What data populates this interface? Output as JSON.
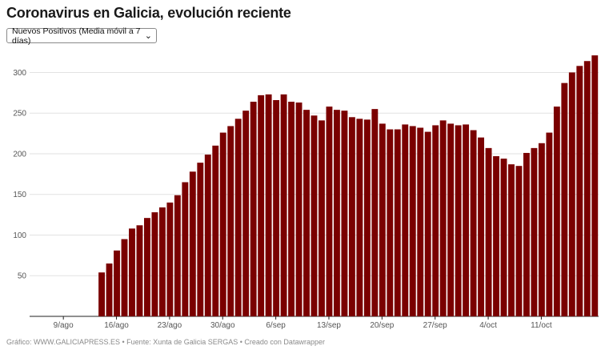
{
  "page": {
    "title": "Coronavirus en Galicia, evolución reciente",
    "selector": {
      "selected": "Nuevos Positivos (Media móvil a 7 días)"
    },
    "footer": "Gráfico: WWW.GALICIAPRESS.ES • Fuente: Xunta de Galicia SERGAS • Creado con Datawrapper"
  },
  "chart_data": {
    "type": "bar",
    "title": "Coronavirus en Galicia, evolución reciente",
    "series_color": "#7a0000",
    "grid": true,
    "ylim": [
      0,
      330
    ],
    "yticks": [
      50,
      100,
      150,
      200,
      250,
      300
    ],
    "xticks": [
      "9/ago",
      "16/ago",
      "23/ago",
      "30/ago",
      "6/sep",
      "13/sep",
      "20/sep",
      "27/sep",
      "4/oct",
      "11/oct"
    ],
    "xtick_indices": [
      3,
      10,
      17,
      24,
      31,
      38,
      45,
      52,
      59,
      66
    ],
    "values": [
      0,
      0,
      0,
      0,
      0,
      0,
      0,
      0,
      0,
      54,
      65,
      81,
      95,
      108,
      112,
      121,
      128,
      134,
      140,
      149,
      165,
      178,
      189,
      199,
      210,
      226,
      234,
      243,
      253,
      264,
      272,
      273,
      266,
      273,
      264,
      263,
      254,
      247,
      241,
      258,
      254,
      253,
      245,
      243,
      242,
      255,
      237,
      230,
      230,
      236,
      234,
      232,
      227,
      235,
      241,
      237,
      235,
      236,
      229,
      220,
      207,
      197,
      194,
      187,
      185,
      201,
      207,
      213,
      226,
      258,
      287,
      300,
      308,
      314,
      321
    ]
  }
}
